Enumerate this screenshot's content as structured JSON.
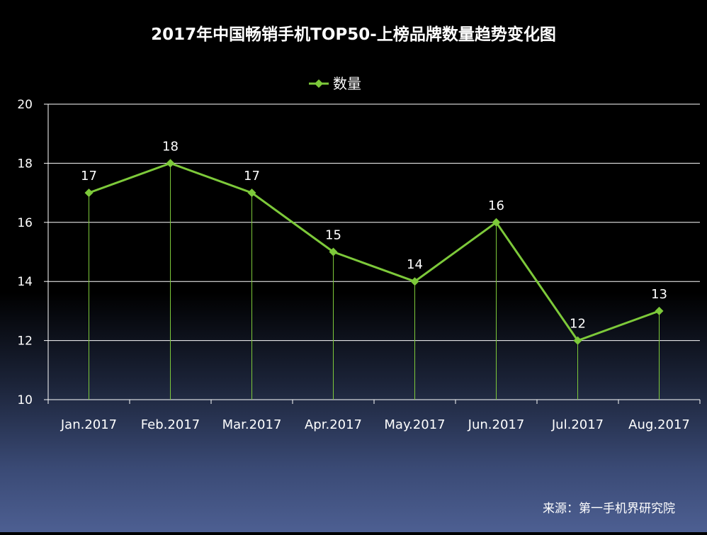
{
  "chart_data": {
    "type": "line",
    "title": "2017年中国畅销手机TOP50-上榜品牌数量趋势变化图",
    "categories": [
      "Jan.2017",
      "Feb.2017",
      "Mar.2017",
      "Apr.2017",
      "May.2017",
      "Jun.2017",
      "Jul.2017",
      "Aug.2017"
    ],
    "series": [
      {
        "name": "数量",
        "values": [
          17,
          18,
          17,
          15,
          14,
          16,
          12,
          13
        ],
        "color": "#7dc93a",
        "marker": "diamond"
      }
    ],
    "ylim": [
      10,
      20
    ],
    "yticks": [
      10,
      12,
      14,
      16,
      18,
      20
    ],
    "grid": true,
    "drop_lines": true,
    "data_labels": true,
    "legend_position": "top-center",
    "source": "来源：第一手机界研究院"
  }
}
